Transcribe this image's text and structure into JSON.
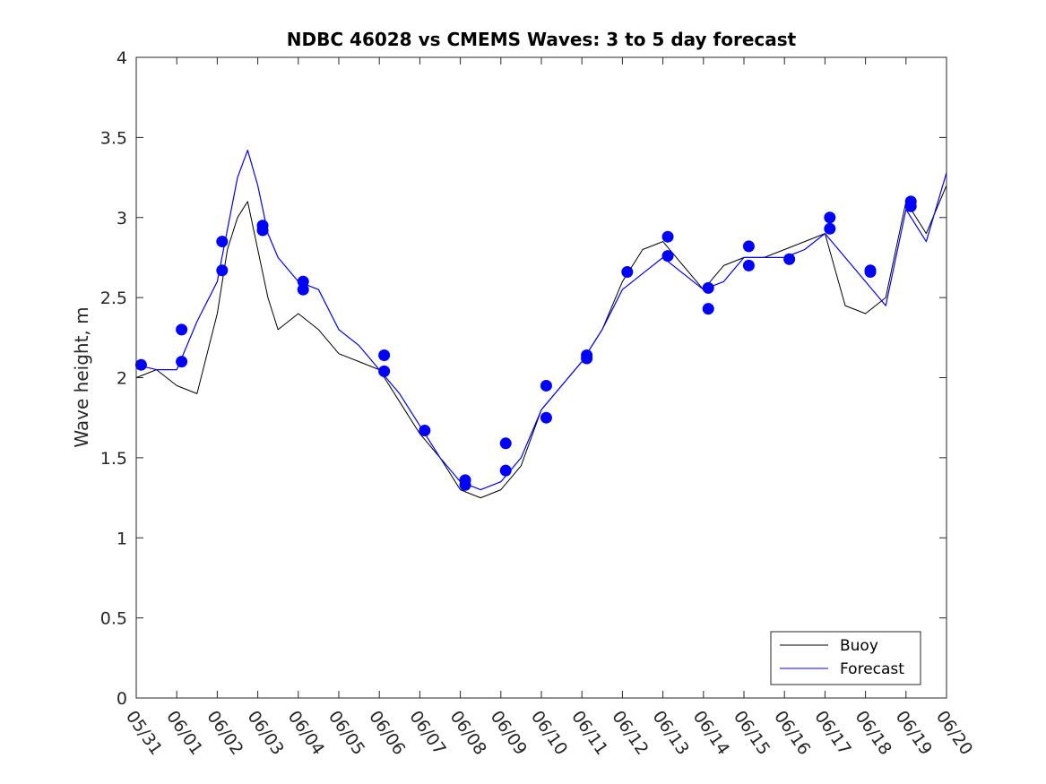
{
  "chart_data": {
    "type": "line",
    "title": "NDBC 46028 vs CMEMS Waves: 3 to 5 day forecast",
    "xlabel": "",
    "ylabel": "Wave height, m",
    "xlim": [
      "05/31",
      "06/20"
    ],
    "ylim": [
      0,
      4
    ],
    "x_tick_labels": [
      "05/31",
      "06/01",
      "06/02",
      "06/03",
      "06/04",
      "06/05",
      "06/06",
      "06/07",
      "06/08",
      "06/09",
      "06/10",
      "06/11",
      "06/12",
      "06/13",
      "06/14",
      "06/15",
      "06/16",
      "06/17",
      "06/18",
      "06/19",
      "06/20"
    ],
    "y_tick_labels": [
      "0",
      "0.5",
      "1",
      "1.5",
      "2",
      "2.5",
      "3",
      "3.5",
      "4"
    ],
    "y_ticks": [
      0,
      0.5,
      1,
      1.5,
      2,
      2.5,
      3,
      3.5,
      4
    ],
    "grid": false,
    "legend_position": "bottom-right",
    "colors": {
      "buoy": "#000000",
      "forecast": "#0000ff"
    },
    "series": [
      {
        "name": "Buoy",
        "color": "#000000",
        "x": [
          0,
          0.5,
          1,
          1.5,
          2,
          2.25,
          2.5,
          2.75,
          3,
          3.25,
          3.5,
          4,
          4.5,
          5,
          5.5,
          6,
          6.5,
          7,
          7.5,
          8,
          8.5,
          9,
          9.5,
          10,
          10.5,
          11,
          11.5,
          12,
          12.5,
          13,
          13.5,
          14,
          14.5,
          15,
          15.5,
          16,
          16.5,
          17,
          17.5,
          18,
          18.5,
          19,
          19.5,
          20
        ],
        "y": [
          2.0,
          2.05,
          1.95,
          1.9,
          2.4,
          2.8,
          3.0,
          3.1,
          2.8,
          2.5,
          2.3,
          2.4,
          2.3,
          2.15,
          2.1,
          2.05,
          1.85,
          1.65,
          1.5,
          1.3,
          1.25,
          1.3,
          1.45,
          1.8,
          1.95,
          2.1,
          2.3,
          2.6,
          2.8,
          2.85,
          2.7,
          2.55,
          2.7,
          2.75,
          2.75,
          2.8,
          2.85,
          2.9,
          2.45,
          2.4,
          2.5,
          3.1,
          2.9,
          3.2
        ]
      },
      {
        "name": "Forecast",
        "color": "#0000ff",
        "x": [
          0,
          0.5,
          1,
          1.5,
          2,
          2.5,
          2.75,
          3,
          3.25,
          3.5,
          4,
          4.5,
          5,
          5.5,
          6,
          6.5,
          7,
          7.5,
          8,
          8.5,
          9,
          9.5,
          10,
          10.5,
          11,
          11.5,
          12,
          12.5,
          13,
          13.5,
          14,
          14.5,
          15,
          15.5,
          16,
          16.5,
          17,
          17.5,
          18,
          18.5,
          19,
          19.5,
          20
        ],
        "y": [
          2.08,
          2.05,
          2.05,
          2.35,
          2.6,
          3.25,
          3.42,
          3.2,
          2.9,
          2.75,
          2.6,
          2.55,
          2.3,
          2.2,
          2.05,
          1.9,
          1.7,
          1.5,
          1.35,
          1.3,
          1.35,
          1.5,
          1.8,
          1.95,
          2.1,
          2.3,
          2.55,
          2.65,
          2.75,
          2.65,
          2.55,
          2.6,
          2.75,
          2.75,
          2.75,
          2.8,
          2.9,
          2.75,
          2.6,
          2.45,
          3.05,
          2.85,
          3.28
        ]
      }
    ],
    "forecast_markers": {
      "name": "Forecast start points",
      "color": "#0000ff",
      "x": [
        0.12,
        1.12,
        1.12,
        2.12,
        2.12,
        3.12,
        3.12,
        4.12,
        4.12,
        6.12,
        6.12,
        7.12,
        8.12,
        8.12,
        9.12,
        9.12,
        10.12,
        10.12,
        11.12,
        11.12,
        12.12,
        13.12,
        13.12,
        14.12,
        14.12,
        15.12,
        15.12,
        16.12,
        17.12,
        17.12,
        18.12,
        18.12,
        19.12,
        19.12
      ],
      "y": [
        2.08,
        2.3,
        2.1,
        2.85,
        2.67,
        2.95,
        2.92,
        2.6,
        2.55,
        2.14,
        2.04,
        1.67,
        1.36,
        1.33,
        1.59,
        1.42,
        1.95,
        1.75,
        2.14,
        2.12,
        2.66,
        2.88,
        2.76,
        2.56,
        2.43,
        2.82,
        2.7,
        2.74,
        3.0,
        2.93,
        2.67,
        2.66,
        3.1,
        3.07
      ]
    }
  }
}
